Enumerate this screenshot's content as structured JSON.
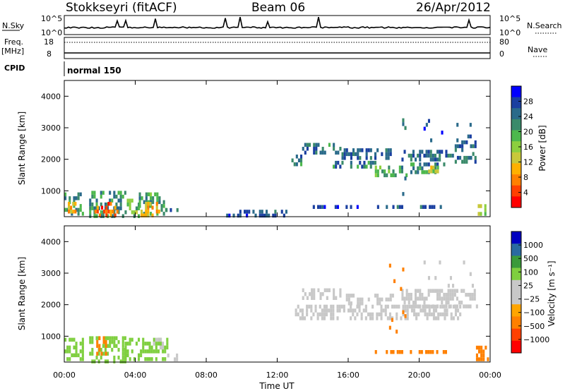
{
  "header": {
    "station": "Stokkseyri (fitACF)",
    "beam": "Beam 06",
    "date": "26/Apr/2012",
    "cpid_value": "normal 150"
  },
  "noise_panel": {
    "left_label": "N.Sky",
    "right_label": "N.Search",
    "left_ticks": [
      "10^5",
      "10^0"
    ],
    "right_ticks": [
      "10^5",
      "10^0"
    ]
  },
  "freq_panel": {
    "left_label_1": "Freq.",
    "left_label_2": "[MHz]",
    "right_label": "Nave",
    "left_ticks": [
      "18",
      "8"
    ],
    "right_ticks": [
      "80",
      "0"
    ]
  },
  "cpid_label": "CPID",
  "x_axis": {
    "title": "Time UT",
    "ticks": [
      "00:00",
      "04:00",
      "08:00",
      "12:00",
      "16:00",
      "20:00",
      "00:00"
    ]
  },
  "colors": {
    "power_scale": [
      "#0000ff",
      "#1a3fa0",
      "#2a6a8a",
      "#3a8a6a",
      "#4db84d",
      "#8ccf3f",
      "#c8c83a",
      "#ffb000",
      "#ff8000",
      "#ff4000",
      "#ff0000"
    ],
    "velocity_scale": [
      "#ff0000",
      "#ff4000",
      "#ff8000",
      "#ffa500",
      "#c8c8c8",
      "#c8c8c8",
      "#7fcf3f",
      "#3a9a3a",
      "#2a6aa0",
      "#0000c0"
    ]
  },
  "chart_data": [
    {
      "type": "heatmap",
      "name": "power",
      "ylabel": "Slant Range [km]",
      "xlim": [
        0,
        24
      ],
      "ylim": [
        180,
        4500
      ],
      "yticks": [
        1000,
        2000,
        3000,
        4000
      ],
      "colorbar": {
        "label": "Power [dB]",
        "ticks": [
          4,
          8,
          12,
          16,
          20,
          24,
          28
        ],
        "range": [
          0,
          32
        ]
      },
      "regions": [
        {
          "t0": 0.0,
          "t1": 1.0,
          "r0": 220,
          "r1": 950,
          "v": 10
        },
        {
          "t0": 0.2,
          "t1": 0.8,
          "r0": 350,
          "r1": 650,
          "v": 21
        },
        {
          "t0": 1.4,
          "t1": 3.4,
          "r0": 220,
          "r1": 1000,
          "v": 10
        },
        {
          "t0": 1.7,
          "t1": 3.1,
          "r0": 220,
          "r1": 650,
          "v": 26
        },
        {
          "t0": 3.4,
          "t1": 4.2,
          "r0": 220,
          "r1": 750,
          "v": 14
        },
        {
          "t0": 4.2,
          "t1": 5.7,
          "r0": 220,
          "r1": 950,
          "v": 11
        },
        {
          "t0": 4.3,
          "t1": 5.4,
          "r0": 220,
          "r1": 650,
          "v": 22
        },
        {
          "t0": 5.7,
          "t1": 6.4,
          "r0": 220,
          "r1": 450,
          "v": 8
        },
        {
          "t0": 9.0,
          "t1": 12.5,
          "r0": 220,
          "r1": 400,
          "v": 6
        },
        {
          "t0": 12.8,
          "t1": 13.4,
          "r0": 1900,
          "r1": 2150,
          "v": 8
        },
        {
          "t0": 13.4,
          "t1": 15.5,
          "r0": 2180,
          "r1": 2520,
          "v": 8
        },
        {
          "t0": 15.5,
          "t1": 18.5,
          "r0": 2100,
          "r1": 2350,
          "v": 7
        },
        {
          "t0": 15.0,
          "t1": 17.5,
          "r0": 1750,
          "r1": 1950,
          "v": 9
        },
        {
          "t0": 17.5,
          "t1": 19.5,
          "r0": 1550,
          "r1": 1800,
          "v": 12
        },
        {
          "t0": 19.5,
          "t1": 21.5,
          "r0": 1600,
          "r1": 1900,
          "v": 9
        },
        {
          "t0": 20.5,
          "t1": 21.0,
          "r0": 1650,
          "r1": 1800,
          "v": 18
        },
        {
          "t0": 19.0,
          "t1": 22.0,
          "r0": 2000,
          "r1": 2300,
          "v": 7
        },
        {
          "t0": 22.0,
          "t1": 23.2,
          "r0": 1900,
          "r1": 2600,
          "v": 7
        },
        {
          "t0": 14.0,
          "t1": 16.5,
          "r0": 450,
          "r1": 550,
          "v": 6
        },
        {
          "t0": 17.5,
          "t1": 19.0,
          "r0": 450,
          "r1": 550,
          "v": 6
        },
        {
          "t0": 19.8,
          "t1": 21.5,
          "r0": 450,
          "r1": 550,
          "v": 7
        },
        {
          "t0": 23.3,
          "t1": 23.9,
          "r0": 300,
          "r1": 700,
          "v": 16
        },
        {
          "t0": 20.0,
          "t1": 23.0,
          "r0": 2600,
          "r1": 3400,
          "v": 6,
          "sparse": true
        },
        {
          "t0": 18.3,
          "t1": 19.2,
          "r0": 900,
          "r1": 3300,
          "v": 6,
          "sparse": true
        }
      ]
    },
    {
      "type": "heatmap",
      "name": "velocity",
      "ylabel": "Slant Range [km]",
      "xlim": [
        0,
        24
      ],
      "ylim": [
        180,
        4500
      ],
      "yticks": [
        1000,
        2000,
        3000,
        4000
      ],
      "colorbar": {
        "label": "Velocity [m s⁻¹]",
        "ticks": [
          "1000",
          "500",
          "100",
          "25",
          "−25",
          "−100",
          "−500",
          "−1000"
        ]
      },
      "regions": [
        {
          "t0": 0.0,
          "t1": 1.0,
          "r0": 220,
          "r1": 950,
          "v": 60
        },
        {
          "t0": 1.4,
          "t1": 3.4,
          "r0": 220,
          "r1": 1000,
          "v": 70
        },
        {
          "t0": 1.8,
          "t1": 2.4,
          "r0": 500,
          "r1": 1000,
          "v": -200
        },
        {
          "t0": 3.4,
          "t1": 5.8,
          "r0": 220,
          "r1": 950,
          "v": 60
        },
        {
          "t0": 5.0,
          "t1": 5.6,
          "r0": 700,
          "r1": 950,
          "v": 0
        },
        {
          "t0": 5.8,
          "t1": 6.4,
          "r0": 220,
          "r1": 450,
          "v": 0
        },
        {
          "t0": 13.4,
          "t1": 15.5,
          "r0": 2180,
          "r1": 2520,
          "v": 0
        },
        {
          "t0": 15.5,
          "t1": 18.5,
          "r0": 2100,
          "r1": 2350,
          "v": 0
        },
        {
          "t0": 13.0,
          "t1": 22.5,
          "r0": 1550,
          "r1": 2000,
          "v": 0
        },
        {
          "t0": 19.0,
          "t1": 23.2,
          "r0": 2000,
          "r1": 2500,
          "v": 0
        },
        {
          "t0": 17.5,
          "t1": 21.5,
          "r0": 450,
          "r1": 560,
          "v": -150
        },
        {
          "t0": 23.2,
          "t1": 23.9,
          "r0": 300,
          "r1": 700,
          "v": -200
        },
        {
          "t0": 20.0,
          "t1": 23.0,
          "r0": 2600,
          "r1": 3400,
          "v": 0,
          "sparse": true
        },
        {
          "t0": 18.3,
          "t1": 19.2,
          "r0": 900,
          "r1": 3300,
          "v": -150,
          "sparse": true
        }
      ]
    }
  ]
}
